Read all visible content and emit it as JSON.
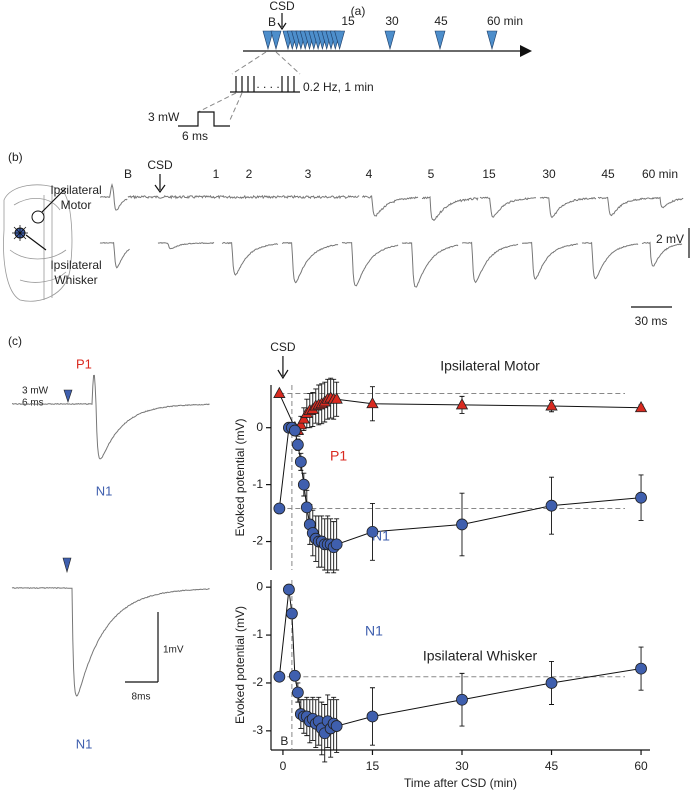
{
  "panel_a": {
    "label": "(a)",
    "csd": "CSD",
    "time_labels": [
      "B",
      "15",
      "30",
      "45",
      "60 min"
    ],
    "stim_rate": "0.2 Hz, 1 min",
    "power": "3 mW",
    "duration": "6 ms"
  },
  "panel_b": {
    "label": "(b)",
    "csd": "CSD",
    "time_labels": [
      "B",
      "1",
      "2",
      "3",
      "4",
      "5",
      "15",
      "30",
      "45",
      "60 min"
    ],
    "row_labels": [
      [
        "Ipsilateral",
        "Motor"
      ],
      [
        "Ipsilateral",
        "Whisker"
      ]
    ],
    "voltage_scale": "2 mV",
    "time_scale": "30 ms"
  },
  "panel_c": {
    "label": "(c)",
    "power": "3 mW",
    "duration": "6 ms",
    "p1": "P1",
    "n1_motor": "N1",
    "n1_whisker": "N1",
    "voltage_scale": "1mV",
    "time_scale": "8ms"
  },
  "chart_data": [
    {
      "type": "line",
      "title": "Ipsilateral Motor",
      "annotation": "CSD",
      "ylabel": "Evoked potential (mV)",
      "xlim": [
        -2,
        61.5
      ],
      "ylim": [
        -2.5,
        0.75
      ],
      "yticks": [
        0,
        -1,
        -2
      ],
      "csd_line_x": 1.5,
      "series": [
        {
          "name": "P1",
          "color": "#d92a20",
          "marker": "triangle",
          "x": [
            -0.6,
            2,
            2.5,
            3,
            3.5,
            4,
            4.5,
            5,
            5.5,
            6,
            6.5,
            7,
            7.5,
            8,
            8.5,
            9,
            15,
            30,
            45,
            60
          ],
          "values": [
            0.6,
            0.0,
            -0.05,
            0.05,
            0.15,
            0.25,
            0.3,
            0.32,
            0.38,
            0.4,
            0.42,
            0.45,
            0.5,
            0.52,
            0.5,
            0.5,
            0.42,
            0.4,
            0.38,
            0.35
          ],
          "errors": [
            0,
            0.05,
            0.1,
            0.15,
            0.2,
            0.25,
            0.3,
            0.3,
            0.3,
            0.35,
            0.35,
            0.35,
            0.35,
            0.35,
            0.35,
            0.3,
            0.3,
            0.15,
            0.1,
            0.05
          ]
        },
        {
          "name": "N1",
          "color": "#3f5fae",
          "marker": "circle",
          "x": [
            -0.6,
            1,
            1.5,
            2,
            2.5,
            3,
            3.5,
            4,
            4.5,
            5,
            5.5,
            6,
            6.5,
            7,
            7.5,
            8,
            8.5,
            9,
            15,
            30,
            45,
            60
          ],
          "values": [
            -1.42,
            0,
            0,
            -0.05,
            -0.3,
            -0.6,
            -1.0,
            -1.4,
            -1.7,
            -1.85,
            -1.95,
            -2.0,
            -2.0,
            -2.05,
            -2.05,
            -2.05,
            -2.1,
            -2.05,
            -1.83,
            -1.7,
            -1.37,
            -1.23
          ],
          "errors": [
            0,
            0,
            0,
            0.05,
            0.1,
            0.15,
            0.2,
            0.3,
            0.35,
            0.4,
            0.4,
            0.45,
            0.45,
            0.45,
            0.5,
            0.45,
            0.45,
            0.45,
            0.5,
            0.55,
            0.5,
            0.4
          ]
        }
      ]
    },
    {
      "type": "line",
      "title": "Ipsilateral Whisker",
      "ylabel": "Evoked potential (mV)",
      "xlabel": "Time after CSD (min)",
      "baseline_label": "B",
      "xlim": [
        -2,
        61.5
      ],
      "ylim": [
        -3.4,
        0.15
      ],
      "xticks": [
        0,
        15,
        30,
        45,
        60
      ],
      "yticks": [
        0,
        -1,
        -2,
        -3
      ],
      "csd_line_x": 1.5,
      "series": [
        {
          "name": "N1",
          "color": "#3f5fae",
          "marker": "circle",
          "x": [
            -0.6,
            1,
            1.5,
            2,
            2.5,
            3,
            3.5,
            4,
            4.5,
            5,
            5.5,
            6,
            6.5,
            7,
            7.5,
            8,
            8.5,
            9,
            15,
            30,
            45,
            60
          ],
          "values": [
            -1.87,
            -0.05,
            -0.55,
            -1.85,
            -2.2,
            -2.65,
            -2.7,
            -2.7,
            -2.8,
            -2.75,
            -2.85,
            -2.8,
            -2.95,
            -3.05,
            -2.8,
            -2.95,
            -2.85,
            -2.9,
            -2.7,
            -2.35,
            -2.0,
            -1.7
          ],
          "errors": [
            0,
            0,
            0,
            0.1,
            0.2,
            0.3,
            0.35,
            0.4,
            0.45,
            0.45,
            0.5,
            0.5,
            0.55,
            0.6,
            0.55,
            0.6,
            0.55,
            0.55,
            0.6,
            0.55,
            0.45,
            0.45
          ]
        }
      ]
    }
  ]
}
